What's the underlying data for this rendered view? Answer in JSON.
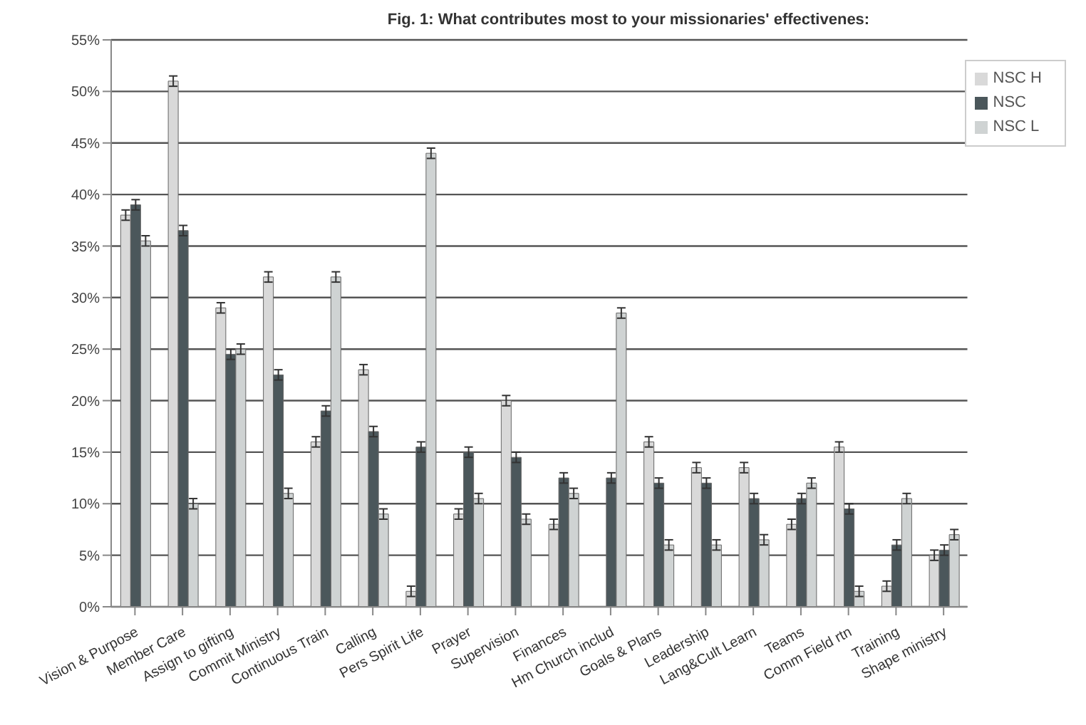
{
  "chart_data": {
    "type": "bar",
    "title": "Fig. 1: What contributes most to your missionaries' effectivenes:",
    "categories": [
      "Vision & Purpose",
      "Member Care",
      "Assign to gifting",
      "Commit Ministry",
      "Continuous Train",
      "Calling",
      "Pers Spirit Life",
      "Prayer",
      "Supervision",
      "Finances",
      "Hm Church includ",
      "Goals & Plans",
      "Leadership",
      "Lang&Cult Learn",
      "Teams",
      "Comm Field rtn",
      "Training",
      "Shape ministry"
    ],
    "series": [
      {
        "name": "NSC H",
        "color": "#d9d9d9",
        "values": [
          38,
          51,
          29,
          32,
          16,
          23,
          1.5,
          9,
          20,
          8,
          0,
          16,
          13.5,
          13.5,
          8,
          15.5,
          2,
          5
        ],
        "errors": [
          0.5,
          0.5,
          0.5,
          0.5,
          0.5,
          0.5,
          0.5,
          0.5,
          0.5,
          0.5,
          null,
          0.5,
          0.5,
          0.5,
          0.5,
          0.5,
          0.5,
          0.5
        ]
      },
      {
        "name": "NSC",
        "color": "#4b575b",
        "values": [
          39,
          36.5,
          24.5,
          22.5,
          19,
          17,
          15.5,
          15,
          14.5,
          12.5,
          12.5,
          12,
          12,
          10.5,
          10.5,
          9.5,
          6,
          5.5
        ],
        "errors": [
          0.5,
          0.5,
          0.5,
          0.5,
          0.5,
          0.5,
          0.5,
          0.5,
          0.5,
          0.5,
          0.5,
          0.5,
          0.5,
          0.5,
          0.5,
          0.5,
          0.5,
          0.5
        ]
      },
      {
        "name": "NSC L",
        "color": "#cfd3d3",
        "values": [
          35.5,
          10,
          25,
          11,
          32,
          9,
          44,
          10.5,
          8.5,
          11,
          28.5,
          6,
          6,
          6.5,
          12,
          1.5,
          10.5,
          7
        ],
        "errors": [
          0.5,
          0.5,
          0.5,
          0.5,
          0.5,
          0.5,
          0.5,
          0.5,
          0.5,
          0.5,
          0.5,
          0.5,
          0.5,
          0.5,
          0.5,
          0.5,
          0.5,
          0.5
        ]
      }
    ],
    "ylim": [
      0,
      55
    ],
    "yticks": [
      {
        "value": 0,
        "label": "0%"
      },
      {
        "value": 5,
        "label": "5%"
      },
      {
        "value": 10,
        "label": "10%"
      },
      {
        "value": 15,
        "label": "15%"
      },
      {
        "value": 20,
        "label": "20%"
      },
      {
        "value": 25,
        "label": "25%"
      },
      {
        "value": 30,
        "label": "30%"
      },
      {
        "value": 35,
        "label": "35%"
      },
      {
        "value": 40,
        "label": "40%"
      },
      {
        "value": 45,
        "label": "45%"
      },
      {
        "value": 50,
        "label": "50%"
      },
      {
        "value": 55,
        "label": "55%"
      }
    ],
    "grid": "y",
    "legend": "top right"
  }
}
